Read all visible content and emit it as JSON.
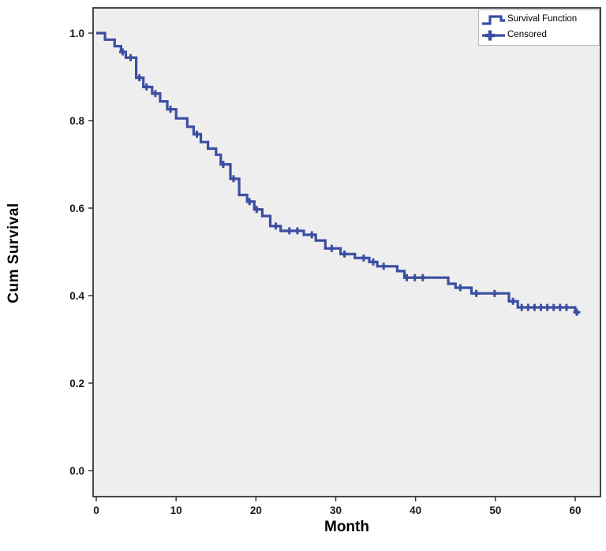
{
  "figure": {
    "x_axis_label": "Month",
    "y_axis_label": "Cum Survival",
    "legend": {
      "items": [
        {
          "label": "Survival Function",
          "icon": "step-line-icon"
        },
        {
          "label": "Censored",
          "icon": "plus-marker-icon"
        }
      ]
    }
  },
  "chart_data": {
    "type": "line",
    "subtype": "kaplan-meier-step",
    "title": "",
    "xlabel": "Month",
    "ylabel": "Cum Survival",
    "xlim": [
      -0.4,
      63.2
    ],
    "ylim": [
      -0.06,
      1.06
    ],
    "x_ticks": [
      0,
      10,
      20,
      30,
      40,
      50,
      60
    ],
    "x_tick_labels": [
      "0",
      "10",
      "20",
      "30",
      "40",
      "50",
      "60"
    ],
    "y_ticks": [
      0.0,
      0.2,
      0.4,
      0.6,
      0.8,
      1.0
    ],
    "y_tick_labels": [
      "0.0",
      "0.2",
      "0.4",
      "0.6",
      "0.8",
      "1.0"
    ],
    "grid": false,
    "plot_bg": "#eeeeee",
    "border_color": "#333333",
    "legend_position": "top-right",
    "series": [
      {
        "name": "Survival Function",
        "type": "step",
        "color": "#3b4ea2",
        "line_width": 3.2,
        "points": [
          [
            0,
            1.0
          ],
          [
            1.1,
            0.985
          ],
          [
            2.3,
            0.97
          ],
          [
            3.1,
            0.957
          ],
          [
            3.7,
            0.944
          ],
          [
            5.0,
            0.898
          ],
          [
            5.9,
            0.877
          ],
          [
            7.0,
            0.862
          ],
          [
            8.0,
            0.844
          ],
          [
            8.9,
            0.826
          ],
          [
            10.0,
            0.805
          ],
          [
            11.4,
            0.786
          ],
          [
            12.2,
            0.769
          ],
          [
            13.1,
            0.751
          ],
          [
            14.0,
            0.736
          ],
          [
            15.0,
            0.722
          ],
          [
            15.6,
            0.7
          ],
          [
            16.8,
            0.667
          ],
          [
            17.9,
            0.63
          ],
          [
            18.9,
            0.615
          ],
          [
            19.8,
            0.597
          ],
          [
            20.8,
            0.582
          ],
          [
            21.8,
            0.559
          ],
          [
            23.1,
            0.548
          ],
          [
            26.0,
            0.539
          ],
          [
            27.5,
            0.526
          ],
          [
            28.7,
            0.508
          ],
          [
            30.6,
            0.495
          ],
          [
            32.4,
            0.486
          ],
          [
            34.2,
            0.477
          ],
          [
            35.2,
            0.467
          ],
          [
            37.7,
            0.456
          ],
          [
            38.6,
            0.441
          ],
          [
            44.1,
            0.427
          ],
          [
            45.0,
            0.418
          ],
          [
            47.0,
            0.405
          ],
          [
            51.7,
            0.387
          ],
          [
            52.8,
            0.373
          ],
          [
            60.0,
            0.362
          ]
        ],
        "end_extension_x": 60.5
      },
      {
        "name": "Censored",
        "type": "marker-plus",
        "color": "#3b4ea2",
        "marker_size": 9,
        "points": [
          [
            3.3,
            0.957
          ],
          [
            4.3,
            0.944
          ],
          [
            5.4,
            0.898
          ],
          [
            6.3,
            0.877
          ],
          [
            7.4,
            0.862
          ],
          [
            9.3,
            0.826
          ],
          [
            12.6,
            0.769
          ],
          [
            15.9,
            0.7
          ],
          [
            17.2,
            0.667
          ],
          [
            19.2,
            0.615
          ],
          [
            20.1,
            0.597
          ],
          [
            22.5,
            0.559
          ],
          [
            24.2,
            0.548
          ],
          [
            25.2,
            0.548
          ],
          [
            27.0,
            0.539
          ],
          [
            29.5,
            0.508
          ],
          [
            31.1,
            0.495
          ],
          [
            33.5,
            0.486
          ],
          [
            34.7,
            0.477
          ],
          [
            36.0,
            0.467
          ],
          [
            38.9,
            0.441
          ],
          [
            39.9,
            0.441
          ],
          [
            40.9,
            0.441
          ],
          [
            45.6,
            0.418
          ],
          [
            47.6,
            0.405
          ],
          [
            49.9,
            0.405
          ],
          [
            52.2,
            0.387
          ],
          [
            53.3,
            0.373
          ],
          [
            54.1,
            0.373
          ],
          [
            54.9,
            0.373
          ],
          [
            55.7,
            0.373
          ],
          [
            56.5,
            0.373
          ],
          [
            57.3,
            0.373
          ],
          [
            58.1,
            0.373
          ],
          [
            58.9,
            0.373
          ],
          [
            60.2,
            0.362
          ]
        ]
      }
    ]
  }
}
